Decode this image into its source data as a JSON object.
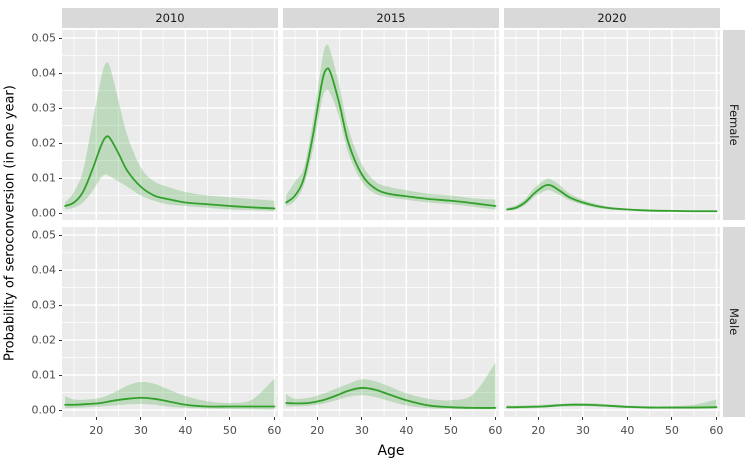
{
  "figure": {
    "y_axis_title": "Probability of seroconversion (in one year)",
    "x_axis_title": "Age"
  },
  "colors": {
    "panel_background": "#ebebeb",
    "strip_background": "#d9d9d9",
    "gridline": "#ffffff",
    "line_green": "#33a02c",
    "ribbon_green": "#33a02c",
    "ribbon_opacity": 0.24,
    "tick_label": "#4d4d4d",
    "tick_mark": "#333333"
  },
  "chart_data": {
    "type": "line",
    "title": "",
    "xlabel": "Age",
    "ylabel": "Probability of seroconversion (in one year)",
    "facet_cols": [
      "2010",
      "2015",
      "2020"
    ],
    "facet_rows": [
      "Female",
      "Male"
    ],
    "x_domain": [
      12.3,
      60.8
    ],
    "y_domain": [
      -0.002,
      0.0523
    ],
    "x_ticks": [
      {
        "label": "20",
        "value": 20
      },
      {
        "label": "30",
        "value": 30
      },
      {
        "label": "40",
        "value": 40
      },
      {
        "label": "50",
        "value": 50
      },
      {
        "label": "60",
        "value": 60
      }
    ],
    "x_minor_ticks": [
      15,
      25,
      35,
      45,
      55
    ],
    "y_ticks": [
      {
        "label": "0.00",
        "value": 0
      },
      {
        "label": "0.01",
        "value": 0.01
      },
      {
        "label": "0.02",
        "value": 0.02
      },
      {
        "label": "0.03",
        "value": 0.03
      },
      {
        "label": "0.04",
        "value": 0.04
      },
      {
        "label": "0.05",
        "value": 0.05
      }
    ],
    "y_minor_ticks": [
      0.005,
      0.015,
      0.025,
      0.035,
      0.045
    ],
    "grid": true,
    "legend": "none",
    "panels": [
      {
        "row": "Female",
        "col": "2010",
        "ages": [
          13,
          15,
          17,
          19,
          21,
          22,
          23,
          25,
          27,
          30,
          33,
          36,
          40,
          45,
          50,
          55,
          60
        ],
        "line": [
          0.002,
          0.003,
          0.006,
          0.012,
          0.019,
          0.0215,
          0.0215,
          0.017,
          0.012,
          0.0075,
          0.005,
          0.004,
          0.003,
          0.0025,
          0.002,
          0.0016,
          0.0013
        ],
        "lower": [
          0.001,
          0.0015,
          0.003,
          0.006,
          0.01,
          0.011,
          0.0105,
          0.009,
          0.0075,
          0.005,
          0.0035,
          0.0025,
          0.002,
          0.0015,
          0.001,
          0.0008,
          0.0005
        ],
        "upper": [
          0.003,
          0.006,
          0.012,
          0.025,
          0.038,
          0.0425,
          0.042,
          0.032,
          0.022,
          0.013,
          0.009,
          0.0075,
          0.006,
          0.005,
          0.0045,
          0.004,
          0.0035
        ]
      },
      {
        "row": "Female",
        "col": "2015",
        "ages": [
          13,
          15,
          17,
          19,
          21,
          22,
          23,
          25,
          27,
          30,
          33,
          36,
          40,
          45,
          50,
          55,
          60
        ],
        "line": [
          0.003,
          0.005,
          0.01,
          0.022,
          0.037,
          0.041,
          0.04,
          0.031,
          0.02,
          0.011,
          0.007,
          0.0055,
          0.0048,
          0.004,
          0.0035,
          0.0028,
          0.002
        ],
        "lower": [
          0.002,
          0.0035,
          0.008,
          0.018,
          0.032,
          0.035,
          0.034,
          0.027,
          0.017,
          0.009,
          0.0055,
          0.0045,
          0.0038,
          0.003,
          0.0025,
          0.0018,
          0.001
        ],
        "upper": [
          0.005,
          0.009,
          0.013,
          0.026,
          0.043,
          0.048,
          0.046,
          0.036,
          0.024,
          0.014,
          0.009,
          0.0075,
          0.0065,
          0.0055,
          0.005,
          0.0042,
          0.0038
        ]
      },
      {
        "row": "Female",
        "col": "2020",
        "ages": [
          13,
          15,
          17,
          19,
          21,
          22,
          23,
          25,
          27,
          30,
          33,
          36,
          40,
          45,
          50,
          55,
          60
        ],
        "line": [
          0.001,
          0.0015,
          0.003,
          0.0055,
          0.0075,
          0.008,
          0.0078,
          0.0062,
          0.0045,
          0.003,
          0.002,
          0.0014,
          0.001,
          0.0007,
          0.0006,
          0.0005,
          0.0005
        ],
        "lower": [
          0.0007,
          0.001,
          0.0022,
          0.0045,
          0.006,
          0.0065,
          0.0063,
          0.005,
          0.0036,
          0.0024,
          0.0015,
          0.001,
          0.0007,
          0.0005,
          0.0004,
          0.0003,
          0.0003
        ],
        "upper": [
          0.0015,
          0.0022,
          0.004,
          0.007,
          0.009,
          0.0098,
          0.0095,
          0.0078,
          0.0056,
          0.0038,
          0.0026,
          0.0018,
          0.0013,
          0.001,
          0.0008,
          0.0008,
          0.0008
        ]
      },
      {
        "row": "Male",
        "col": "2010",
        "ages": [
          13,
          15,
          18,
          21,
          24,
          27,
          30,
          33,
          36,
          40,
          45,
          50,
          55,
          60
        ],
        "line": [
          0.0015,
          0.0015,
          0.0017,
          0.002,
          0.0027,
          0.0032,
          0.0035,
          0.0032,
          0.0025,
          0.0015,
          0.001,
          0.001,
          0.001,
          0.001
        ],
        "lower": [
          0.0005,
          0.0006,
          0.0008,
          0.001,
          0.0013,
          0.0016,
          0.0017,
          0.0015,
          0.001,
          0.0006,
          0.0004,
          0.0003,
          0.0002,
          0.0001
        ],
        "upper": [
          0.004,
          0.003,
          0.003,
          0.0035,
          0.005,
          0.007,
          0.008,
          0.0075,
          0.006,
          0.004,
          0.0025,
          0.002,
          0.003,
          0.009
        ]
      },
      {
        "row": "Male",
        "col": "2015",
        "ages": [
          13,
          15,
          18,
          21,
          24,
          27,
          30,
          33,
          36,
          40,
          45,
          50,
          55,
          60
        ],
        "line": [
          0.002,
          0.0019,
          0.002,
          0.0027,
          0.004,
          0.0055,
          0.0063,
          0.0058,
          0.0045,
          0.0028,
          0.0013,
          0.0008,
          0.0006,
          0.0006
        ],
        "lower": [
          0.001,
          0.001,
          0.0012,
          0.0017,
          0.0027,
          0.0038,
          0.0042,
          0.0037,
          0.0026,
          0.0013,
          0.0005,
          0.0003,
          0.0002,
          0.0002
        ],
        "upper": [
          0.0045,
          0.0032,
          0.0035,
          0.0045,
          0.006,
          0.0075,
          0.0088,
          0.0082,
          0.0068,
          0.0048,
          0.0032,
          0.0028,
          0.0045,
          0.0135
        ]
      },
      {
        "row": "Male",
        "col": "2020",
        "ages": [
          13,
          15,
          18,
          21,
          24,
          27,
          30,
          33,
          36,
          40,
          45,
          50,
          55,
          60
        ],
        "line": [
          0.0008,
          0.0008,
          0.0009,
          0.001,
          0.0013,
          0.0015,
          0.0015,
          0.0014,
          0.0012,
          0.0009,
          0.0007,
          0.0007,
          0.0007,
          0.0008
        ],
        "lower": [
          0.0004,
          0.0004,
          0.0005,
          0.0007,
          0.0009,
          0.001,
          0.0011,
          0.001,
          0.0008,
          0.0006,
          0.0004,
          0.0004,
          0.0004,
          0.0004
        ],
        "upper": [
          0.0013,
          0.0012,
          0.0014,
          0.0015,
          0.0017,
          0.0019,
          0.002,
          0.0019,
          0.0016,
          0.0013,
          0.0011,
          0.0011,
          0.0015,
          0.003
        ]
      }
    ]
  }
}
